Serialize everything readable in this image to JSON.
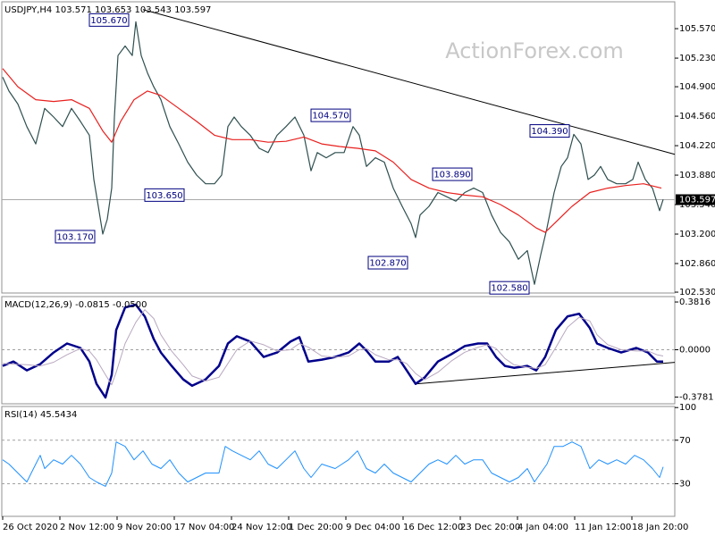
{
  "chart_data": [
    {
      "type": "line",
      "title": "USDJPY,H4  103.571 103.653 103.543 103.597",
      "watermark": "ActionForex.com",
      "xlim": [
        -1.5,
        376.5
      ],
      "ylim": [
        102.52,
        105.88
      ],
      "yticks": [
        {
          "value": 105.57,
          "label": "105.570"
        },
        {
          "value": 105.23,
          "label": "105.230"
        },
        {
          "value": 104.9,
          "label": "104.900"
        },
        {
          "value": 104.56,
          "label": "104.560"
        },
        {
          "value": 104.22,
          "label": "104.220"
        },
        {
          "value": 103.88,
          "label": "103.880"
        },
        {
          "value": 103.54,
          "label": "103.540"
        },
        {
          "value": 103.2,
          "label": "103.200"
        },
        {
          "value": 102.86,
          "label": "102.860"
        },
        {
          "value": 102.53,
          "label": "102.530"
        }
      ],
      "last_price": {
        "value": 103.597,
        "label": "103.597"
      },
      "series": [
        {
          "color": "#2f4f4f",
          "x": [
            0,
            3.5,
            8.5,
            13.5,
            18.5,
            23.5,
            28.5,
            33.5,
            38.5,
            43.5,
            48.5,
            51,
            53.5,
            56,
            58.5,
            61,
            62.5,
            64.5,
            68.5,
            72.5,
            74.5,
            77.5,
            81,
            84.5,
            88.5,
            93.5,
            98.5,
            103.5,
            108.5,
            113.5,
            118.5,
            122.5,
            126,
            129.5,
            133.5,
            138.5,
            143.5,
            148.5,
            153.5,
            158.5,
            163.5,
            168.5,
            172.5,
            176,
            181,
            186,
            191,
            196,
            199.5,
            203.5,
            208.5,
            213.5,
            218.5,
            223.5,
            228.5,
            231,
            233.5,
            238.5,
            243.5,
            248.5,
            253.5,
            258.5,
            263.5,
            268.5,
            273.5,
            278.5,
            283.5,
            288.5,
            293.5,
            297.5,
            301,
            304.5,
            308.5,
            312.5,
            316,
            319.5,
            323.5,
            327.5,
            331,
            334.5,
            338.5,
            343.5,
            348.5,
            352.5,
            355.5,
            359.5,
            363.5,
            367.5,
            369.5
          ],
          "values": [
            105.01,
            104.85,
            104.7,
            104.44,
            104.24,
            104.65,
            104.55,
            104.44,
            104.65,
            104.5,
            104.34,
            103.83,
            103.52,
            103.2,
            103.37,
            103.73,
            104.55,
            105.26,
            105.37,
            105.26,
            105.65,
            105.26,
            105.06,
            104.9,
            104.75,
            104.44,
            104.24,
            104.03,
            103.88,
            103.78,
            103.78,
            103.88,
            104.44,
            104.55,
            104.44,
            104.34,
            104.19,
            104.14,
            104.34,
            104.44,
            104.55,
            104.34,
            103.93,
            104.14,
            104.08,
            104.14,
            104.14,
            104.44,
            104.34,
            103.98,
            104.08,
            104.03,
            103.73,
            103.52,
            103.32,
            103.16,
            103.42,
            103.52,
            103.68,
            103.63,
            103.58,
            103.68,
            103.73,
            103.68,
            103.42,
            103.22,
            103.11,
            102.91,
            103.01,
            102.62,
            102.96,
            103.27,
            103.68,
            103.98,
            104.08,
            104.35,
            104.24,
            103.83,
            103.88,
            103.98,
            103.83,
            103.78,
            103.78,
            103.83,
            104.03,
            103.83,
            103.73,
            103.47,
            103.6
          ]
        },
        {
          "color": "#e8201e",
          "x": [
            0,
            8.5,
            18.5,
            28.5,
            38.5,
            48.5,
            56,
            61,
            66,
            73.5,
            81,
            88.5,
            98.5,
            108.5,
            118.5,
            128.5,
            138.5,
            148.5,
            158.5,
            168.5,
            178.5,
            188.5,
            198.5,
            208.5,
            218.5,
            228.5,
            238.5,
            248.5,
            258.5,
            268.5,
            278.5,
            288.5,
            298.5,
            303.5,
            308.5,
            318.5,
            328.5,
            338.5,
            348.5,
            358.5,
            368.5
          ],
          "values": [
            105.11,
            104.9,
            104.75,
            104.73,
            104.75,
            104.65,
            104.39,
            104.26,
            104.5,
            104.75,
            104.85,
            104.8,
            104.65,
            104.5,
            104.34,
            104.29,
            104.29,
            104.26,
            104.27,
            104.32,
            104.24,
            104.21,
            104.19,
            104.16,
            104.03,
            103.83,
            103.73,
            103.68,
            103.65,
            103.63,
            103.54,
            103.42,
            103.27,
            103.22,
            103.32,
            103.52,
            103.68,
            103.73,
            103.76,
            103.78,
            103.73
          ]
        }
      ],
      "trendlines": [
        {
          "color": "#000000",
          "x": [
            78.5,
            376
          ],
          "values": [
            105.79,
            104.12
          ]
        }
      ],
      "annotations": [
        {
          "x": 48.5,
          "value": 105.67,
          "label": "105.670"
        },
        {
          "x": 79.5,
          "value": 103.65,
          "label": "103.650"
        },
        {
          "x": 29.5,
          "value": 103.17,
          "label": "103.170"
        },
        {
          "x": 172.5,
          "value": 104.57,
          "label": "104.570"
        },
        {
          "x": 240.5,
          "value": 103.89,
          "label": "103.890"
        },
        {
          "x": 204.5,
          "value": 102.87,
          "label": "102.870"
        },
        {
          "x": 295,
          "value": 104.39,
          "label": "104.390"
        },
        {
          "x": 272.5,
          "value": 102.58,
          "label": "102.580"
        }
      ]
    },
    {
      "type": "line",
      "title": "MACD(12,26,9) -0.0815 -0.0500",
      "xlim": [
        -1.5,
        376.5
      ],
      "ylim": [
        -0.432,
        0.4248
      ],
      "yticks": [
        0.3816,
        {
          "value": 0,
          "label": "0.0000"
        },
        -0.3781
      ],
      "reference_lines": [
        0
      ],
      "series": [
        {
          "color": "#00008b",
          "width": 2.5,
          "x": [
            0,
            6,
            13.5,
            21,
            28.5,
            36,
            43.5,
            48.5,
            52.5,
            57.5,
            61,
            63.5,
            68.5,
            74.5,
            79.5,
            84.5,
            88.5,
            94.5,
            101,
            106,
            113.5,
            121,
            126,
            131,
            138.5,
            146,
            153.5,
            161,
            166,
            171,
            178.5,
            186,
            193.5,
            199.5,
            203.5,
            208.5,
            216,
            221,
            226,
            231,
            236,
            243.5,
            251,
            258.5,
            266,
            271,
            276,
            281,
            286,
            293.5,
            298.5,
            303.5,
            309.5,
            316,
            322.5,
            328.5,
            332.5,
            338.5,
            346,
            354.5,
            361,
            366,
            369.5
          ],
          "values": [
            -0.129,
            -0.094,
            -0.165,
            -0.115,
            -0.022,
            0.05,
            0.014,
            -0.094,
            -0.273,
            -0.381,
            -0.201,
            0.158,
            0.338,
            0.36,
            0.266,
            0.086,
            -0.022,
            -0.129,
            -0.237,
            -0.288,
            -0.237,
            -0.129,
            0.05,
            0.108,
            0.065,
            -0.058,
            -0.022,
            0.065,
            0.101,
            -0.094,
            -0.079,
            -0.058,
            -0.022,
            0.05,
            -0.007,
            -0.094,
            -0.094,
            -0.058,
            -0.165,
            -0.273,
            -0.223,
            -0.094,
            -0.036,
            0.029,
            0.05,
            0.05,
            -0.058,
            -0.129,
            -0.144,
            -0.129,
            -0.165,
            -0.058,
            0.158,
            0.266,
            0.288,
            0.173,
            0.05,
            0.014,
            -0.022,
            0.014,
            -0.022,
            -0.094,
            -0.094
          ]
        },
        {
          "color": "#b8a8c0",
          "width": 1,
          "x": [
            0,
            6,
            13.5,
            21,
            28.5,
            36,
            43.5,
            48.5,
            52.5,
            57.5,
            61,
            63.5,
            68.5,
            74.5,
            79.5,
            84.5,
            88.5,
            94.5,
            101,
            106,
            113.5,
            121,
            126,
            131,
            138.5,
            146,
            153.5,
            161,
            166,
            171,
            178.5,
            186,
            193.5,
            199.5,
            203.5,
            208.5,
            216,
            221,
            226,
            231,
            236,
            243.5,
            251,
            258.5,
            266,
            271,
            276,
            281,
            286,
            293.5,
            298.5,
            303.5,
            309.5,
            316,
            322.5,
            328.5,
            332.5,
            338.5,
            346,
            354.5,
            361,
            366,
            369.5
          ],
          "values": [
            -0.11,
            -0.115,
            -0.12,
            -0.13,
            -0.1,
            -0.04,
            0.01,
            -0.01,
            -0.08,
            -0.2,
            -0.28,
            -0.18,
            0.05,
            0.22,
            0.32,
            0.25,
            0.12,
            -0.01,
            -0.12,
            -0.21,
            -0.25,
            -0.22,
            -0.11,
            0,
            0.07,
            0.04,
            -0.01,
            0,
            0.05,
            0.02,
            -0.05,
            -0.06,
            -0.05,
            0,
            0.01,
            -0.04,
            -0.08,
            -0.08,
            -0.11,
            -0.19,
            -0.24,
            -0.18,
            -0.09,
            -0.02,
            0.02,
            0.04,
            0.01,
            -0.07,
            -0.12,
            -0.14,
            -0.15,
            -0.12,
            0.02,
            0.18,
            0.26,
            0.23,
            0.12,
            0.04,
            0,
            -0.01,
            -0.01,
            -0.04,
            -0.05
          ]
        }
      ],
      "trendlines": [
        {
          "color": "#000000",
          "x": [
            231,
            376
          ],
          "values": [
            -0.273,
            -0.101
          ]
        }
      ]
    },
    {
      "type": "line",
      "title": "RSI(14) 45.5434",
      "xlim": [
        -1.5,
        376.5
      ],
      "ylim": [
        0,
        101
      ],
      "yticks": [
        100,
        70,
        30
      ],
      "reference_lines": [
        70,
        30
      ],
      "xticks": [
        {
          "value": 0,
          "label": "26 Oct 2020"
        },
        {
          "value": 32,
          "label": "2 Nov 12:00"
        },
        {
          "value": 64,
          "label": "9 Nov 20:00"
        },
        {
          "value": 96,
          "label": "17 Nov 04:00"
        },
        {
          "value": 128,
          "label": "24 Nov 12:00"
        },
        {
          "value": 160,
          "label": "1 Dec 20:00"
        },
        {
          "value": 192,
          "label": "9 Dec 04:00"
        },
        {
          "value": 224,
          "label": "16 Dec 12:00"
        },
        {
          "value": 256,
          "label": "23 Dec 20:00"
        },
        {
          "value": 288,
          "label": "4 Jan 04:00"
        },
        {
          "value": 320,
          "label": "11 Jan 12:00"
        },
        {
          "value": 352,
          "label": "18 Jan 20:00"
        }
      ],
      "series": [
        {
          "color": "#1e90ff",
          "width": 1,
          "x": [
            0,
            3.5,
            8.5,
            13.5,
            18.5,
            21,
            23.5,
            28.5,
            33.5,
            38.5,
            43.5,
            48.5,
            52.5,
            57.5,
            61,
            63.5,
            68.5,
            73.5,
            78.5,
            83.5,
            88.5,
            93.5,
            98.5,
            103.5,
            108.5,
            113.5,
            121,
            124.5,
            128.5,
            133.5,
            138.5,
            143.5,
            148.5,
            153.5,
            158.5,
            163.5,
            168.5,
            172.5,
            178.5,
            186,
            193.5,
            198.5,
            203.5,
            208.5,
            213.5,
            218.5,
            223.5,
            228.5,
            233.5,
            238.5,
            243.5,
            248.5,
            253.5,
            258.5,
            263.5,
            268.5,
            273.5,
            278.5,
            283.5,
            288.5,
            293.5,
            297.5,
            301,
            304.5,
            308.5,
            313.5,
            318.5,
            323.5,
            328.5,
            333.5,
            338.5,
            343.5,
            348.5,
            353.5,
            358.5,
            363.5,
            367.5,
            369.5
          ],
          "values": [
            52.0,
            48.0,
            39.8,
            31.6,
            48.0,
            56.1,
            43.9,
            52.0,
            48.0,
            56.1,
            48.0,
            35.7,
            31.6,
            27.6,
            39.8,
            68.4,
            64.3,
            52.0,
            60.2,
            48.0,
            43.9,
            52.0,
            39.8,
            31.6,
            35.7,
            39.8,
            39.8,
            64.3,
            60.2,
            56.1,
            52.0,
            60.2,
            48.0,
            43.9,
            52.0,
            60.2,
            43.9,
            35.7,
            48.0,
            43.9,
            52.0,
            60.2,
            43.9,
            39.8,
            48.0,
            39.8,
            35.7,
            31.6,
            39.8,
            48.0,
            52.0,
            48.0,
            56.1,
            48.0,
            52.0,
            52.0,
            39.8,
            35.7,
            31.6,
            35.7,
            43.9,
            31.6,
            39.8,
            48.0,
            64.3,
            64.3,
            68.4,
            64.3,
            43.9,
            52.0,
            48.0,
            52.0,
            48.0,
            56.1,
            52.0,
            43.9,
            35.7,
            45.5
          ]
        }
      ]
    }
  ]
}
